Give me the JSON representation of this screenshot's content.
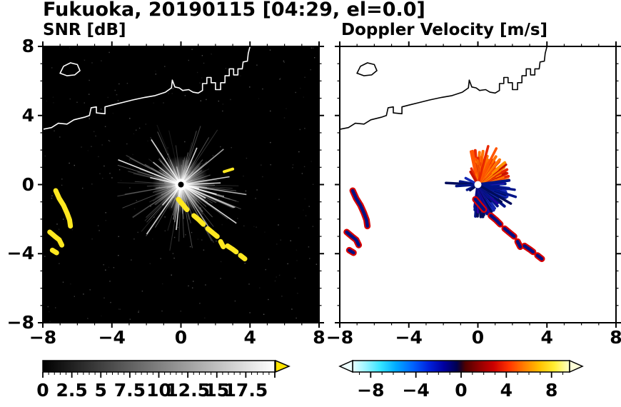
{
  "figure": {
    "title": "Fukuoka, 20190115 [04:29, el=0.0]"
  },
  "chart_data": [
    {
      "type": "heatmap",
      "title": "SNR [dB]",
      "xlim": [
        -8,
        8
      ],
      "ylim": [
        -8,
        8
      ],
      "xticks": [
        -8,
        -4,
        0,
        4,
        8
      ],
      "yticks": [
        8,
        4,
        0,
        -4,
        -8
      ],
      "grid": false,
      "background": "#000000",
      "colorbar": {
        "orientation": "horizontal",
        "range": [
          0,
          20
        ],
        "tick_values": [
          0,
          2.5,
          5,
          7.5,
          10,
          12.5,
          15,
          17.5
        ],
        "colormap": [
          "#000000",
          "#ffffff"
        ],
        "over_arrow_color": "#ffe400"
      },
      "content": "Radar PPI scan: noisy gray radial beams emanate from the instrument at the origin; bright yellow high-SNR echo arcs to the southwest near (-7,-1)..(-6.4,-2.4) and (-7.6,-2.8)..(-6.9,-3.5), a broken echo chain from (0,-0.9) to (3.7,-4.3), a short streak near (2.7,0.8); white coastline with island along the north side"
    },
    {
      "type": "heatmap",
      "title": "Doppler Velocity [m/s]",
      "xlim": [
        -8,
        8
      ],
      "ylim": [
        -8,
        8
      ],
      "xticks": [
        -8,
        -4,
        0,
        4,
        8
      ],
      "yticks": [
        8,
        4,
        0,
        -4,
        -8
      ],
      "grid": false,
      "background": "#ffffff",
      "colorbar": {
        "orientation": "horizontal",
        "range": [
          -9.6,
          9.6
        ],
        "tick_values": [
          -8,
          -4,
          0,
          4,
          8
        ],
        "colormap": [
          "#e6ffff",
          "#33e4ff",
          "#0061ff",
          "#0000a0",
          "#000050",
          "#500000",
          "#cc0000",
          "#ff7e00",
          "#ffee33",
          "#ffffcc"
        ],
        "under_arrow_color": "#eeffff",
        "over_arrow_color": "#ffffd8"
      },
      "content": "Doppler velocity PPI: positive (orange/red) velocities fan north-northeast of the origin, negative (dark blue) velocities fan east-southeast with spikes west; blue echo arcs rimmed in red to the southwest and a broken chain toward the southeast; black coastline with island along the north side"
    }
  ],
  "axes": {
    "xticks": [
      -8,
      -4,
      0,
      4,
      8
    ],
    "xtick_labels": [
      "−8",
      "−4",
      "0",
      "4",
      "8"
    ],
    "yticks": [
      8,
      4,
      0,
      -4,
      -8
    ],
    "ytick_labels": [
      "8",
      "4",
      "0",
      "−4",
      "−8"
    ],
    "minor_tick_interval": 1
  },
  "colorbars": {
    "snr": {
      "range": [
        0,
        20
      ],
      "major_step": 2.5,
      "minor_step": 0.5,
      "stops": [
        [
          0,
          "#000000"
        ],
        [
          1,
          "#ffffff"
        ]
      ],
      "over_arrow": "#ffe400",
      "tick_labels": [
        {
          "v": 0,
          "label": "0"
        },
        {
          "v": 2.5,
          "label": "2.5"
        },
        {
          "v": 5,
          "label": "5"
        },
        {
          "v": 7.5,
          "label": "7.5"
        },
        {
          "v": 10,
          "label": "10"
        },
        {
          "v": 12.5,
          "label": "12.5"
        },
        {
          "v": 15,
          "label": "15"
        },
        {
          "v": 17.5,
          "label": "17.5"
        }
      ]
    },
    "velocity": {
      "range": [
        -9.6,
        9.6
      ],
      "stops": [
        [
          0,
          "#e6ffff"
        ],
        [
          0.06,
          "#9cf4ff"
        ],
        [
          0.13,
          "#33e4ff"
        ],
        [
          0.2,
          "#00aaff"
        ],
        [
          0.28,
          "#0061ff"
        ],
        [
          0.35,
          "#0022dd"
        ],
        [
          0.42,
          "#0000a0"
        ],
        [
          0.48,
          "#000050"
        ],
        [
          0.5,
          "#200020"
        ],
        [
          0.52,
          "#500000"
        ],
        [
          0.58,
          "#8e0000"
        ],
        [
          0.65,
          "#cc0000"
        ],
        [
          0.72,
          "#ff3300"
        ],
        [
          0.79,
          "#ff7e00"
        ],
        [
          0.86,
          "#ffc000"
        ],
        [
          0.93,
          "#ffee33"
        ],
        [
          1,
          "#ffffcc"
        ]
      ],
      "under_arrow": "#eeffff",
      "over_arrow": "#ffffd8",
      "tick_labels": [
        {
          "v": -8,
          "label": "−8"
        },
        {
          "v": -4,
          "label": "−4"
        },
        {
          "v": 0,
          "label": "0"
        },
        {
          "v": 4,
          "label": "4"
        },
        {
          "v": 8,
          "label": "8"
        }
      ]
    }
  },
  "features": {
    "coastline": {
      "main": [
        [
          -8,
          3.2
        ],
        [
          -7.5,
          3.3
        ],
        [
          -7.1,
          3.55
        ],
        [
          -6.6,
          3.5
        ],
        [
          -6.2,
          3.75
        ],
        [
          -5.6,
          3.9
        ],
        [
          -5.3,
          4.0
        ],
        [
          -5.2,
          4.45
        ],
        [
          -4.9,
          4.5
        ],
        [
          -4.9,
          4.15
        ],
        [
          -4.4,
          4.1
        ],
        [
          -4.4,
          4.5
        ],
        [
          -4.0,
          4.6
        ],
        [
          -3.4,
          4.75
        ],
        [
          -2.8,
          4.9
        ],
        [
          -2.1,
          5.05
        ],
        [
          -1.5,
          5.15
        ],
        [
          -0.9,
          5.35
        ],
        [
          -0.55,
          5.6
        ],
        [
          -0.5,
          6.05
        ],
        [
          -0.35,
          5.65
        ],
        [
          -0.1,
          5.6
        ],
        [
          0.1,
          5.45
        ],
        [
          0.45,
          5.5
        ],
        [
          0.7,
          5.35
        ],
        [
          1.0,
          5.3
        ],
        [
          1.25,
          5.45
        ],
        [
          1.25,
          5.85
        ],
        [
          1.5,
          5.85
        ],
        [
          1.5,
          6.2
        ],
        [
          1.75,
          6.2
        ],
        [
          1.75,
          5.9
        ],
        [
          2.0,
          5.9
        ],
        [
          2.0,
          5.5
        ],
        [
          2.3,
          5.5
        ],
        [
          2.3,
          5.9
        ],
        [
          2.55,
          5.9
        ],
        [
          2.55,
          6.3
        ],
        [
          2.8,
          6.3
        ],
        [
          2.8,
          6.7
        ],
        [
          3.05,
          6.7
        ],
        [
          3.05,
          6.35
        ],
        [
          3.3,
          6.35
        ],
        [
          3.3,
          6.7
        ],
        [
          3.55,
          6.7
        ],
        [
          3.6,
          7.1
        ],
        [
          3.85,
          7.15
        ],
        [
          3.9,
          7.6
        ],
        [
          4.0,
          8.0
        ]
      ],
      "island": [
        [
          -7.0,
          6.45
        ],
        [
          -6.8,
          6.85
        ],
        [
          -6.4,
          7.05
        ],
        [
          -6.0,
          6.95
        ],
        [
          -5.85,
          6.6
        ],
        [
          -6.15,
          6.35
        ],
        [
          -6.6,
          6.3
        ],
        [
          -7.0,
          6.45
        ]
      ]
    },
    "echo_color_snr": "#ffe820",
    "echo_edge_vel": "#d80000",
    "echo_core_vel": "#001184",
    "echo_chains": [
      [
        [
          -7.25,
          -0.35
        ],
        [
          -7.05,
          -0.8
        ],
        [
          -6.8,
          -1.2
        ],
        [
          -6.6,
          -1.65
        ],
        [
          -6.45,
          -2.05
        ],
        [
          -6.4,
          -2.4
        ]
      ],
      [
        [
          -7.6,
          -2.75
        ],
        [
          -7.3,
          -3.0
        ],
        [
          -7.05,
          -3.2
        ],
        [
          -6.9,
          -3.5
        ]
      ],
      [
        [
          -7.45,
          -3.8
        ],
        [
          -7.2,
          -3.95
        ]
      ],
      [
        [
          -0.15,
          -0.85
        ],
        [
          0.1,
          -1.15
        ],
        [
          0.35,
          -1.45
        ]
      ],
      [
        [
          0.75,
          -1.8
        ],
        [
          1.05,
          -2.05
        ],
        [
          1.3,
          -2.3
        ]
      ],
      [
        [
          1.55,
          -2.55
        ],
        [
          1.85,
          -2.8
        ],
        [
          2.1,
          -3.0
        ]
      ],
      [
        [
          2.3,
          -3.3
        ],
        [
          2.45,
          -3.6
        ]
      ],
      [
        [
          2.7,
          -3.55
        ],
        [
          3.0,
          -3.75
        ],
        [
          3.2,
          -3.9
        ]
      ],
      [
        [
          3.45,
          -4.1
        ],
        [
          3.7,
          -4.3
        ]
      ]
    ],
    "snr_streak": [
      [
        2.5,
        0.75
      ],
      [
        3.0,
        0.9
      ]
    ],
    "beams": {
      "seed": 13,
      "count": 230,
      "bright_count": 24,
      "speckle": 260,
      "r_max": 3.6
    },
    "fan_positive": {
      "a0": 8,
      "a1": 104,
      "r_min": 0.5,
      "r_max": 2.05,
      "colors": [
        "#ff7300",
        "#ff5500",
        "#e82800",
        "#c81400",
        "#ff9100"
      ]
    },
    "fan_negative": {
      "a0": -98,
      "a1": 8,
      "r_min": 0.45,
      "r_max": 1.85,
      "colors": [
        "#001488",
        "#001488",
        "#000c5c",
        "#1428b4",
        "#2800a0"
      ]
    },
    "extra_spikes": [
      {
        "a": 170,
        "r": 1.05,
        "c": "#001488"
      },
      {
        "a": 177,
        "r": 1.85,
        "c": "#000c5c"
      },
      {
        "a": 184,
        "r": 1.25,
        "c": "#001488"
      },
      {
        "a": 152,
        "r": 0.8,
        "c": "#1428b4"
      },
      {
        "a": 206,
        "r": 0.7,
        "c": "#001488"
      },
      {
        "a": 216,
        "r": 0.55,
        "c": "#000c5c"
      },
      {
        "a": 112,
        "r": 1.0,
        "c": "#e82800"
      },
      {
        "a": 120,
        "r": 0.85,
        "c": "#c81400"
      },
      {
        "a": 63,
        "r": 2.35,
        "c": "#ff5500"
      },
      {
        "a": 75,
        "r": 2.3,
        "c": "#e82800"
      },
      {
        "a": -18,
        "r": 2.3,
        "c": "#001488"
      },
      {
        "a": -8,
        "r": 2.15,
        "c": "#001488"
      },
      {
        "a": -30,
        "r": 2.2,
        "c": "#000c5c"
      }
    ]
  }
}
